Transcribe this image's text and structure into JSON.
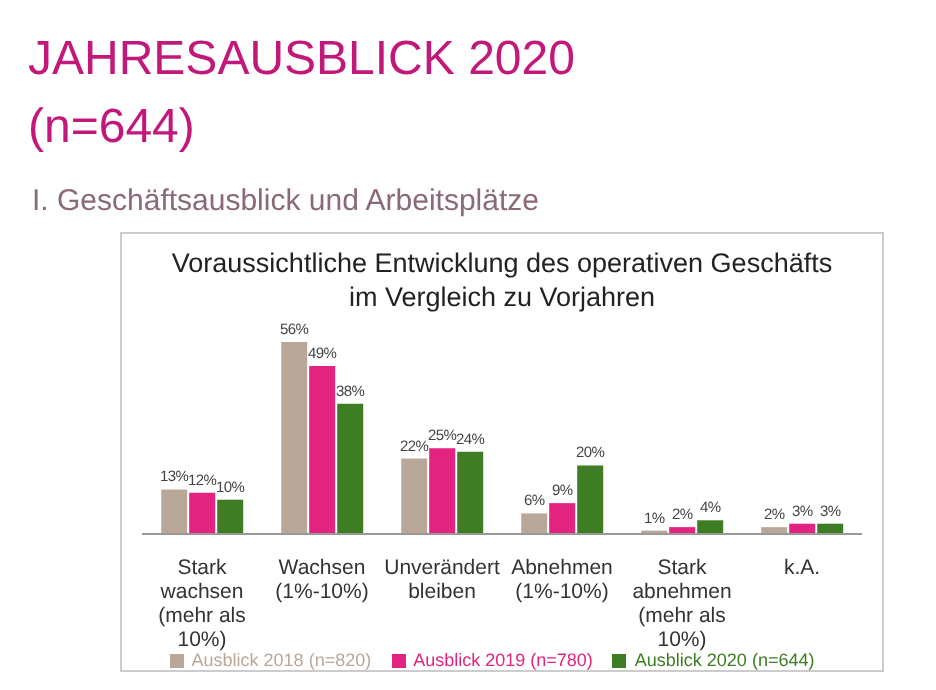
{
  "chart_data": {
    "type": "bar",
    "title": "Voraussichtliche Entwicklung des operativen Geschäfts im Vergleich zu Vorjahren",
    "annotations": [
      "JAHRESAUSBLICK 2020",
      "(n=644)",
      "I. Geschäftsausblick und Arbeitsplätze"
    ],
    "categories": [
      "Stark wachsen (mehr als 10%)",
      "Wachsen (1%-10%)",
      "Unverändert bleiben",
      "Abnehmen (1%-10%)",
      "Stark abnehmen (mehr als 10%)",
      "k.A."
    ],
    "series": [
      {
        "name": "Ausblick 2018 (n=820)",
        "color": "#b9a89a",
        "values": [
          13,
          56,
          22,
          6,
          1,
          2
        ],
        "value_labels": [
          "13%",
          "56%",
          "22%",
          "6%",
          "1%",
          "2%"
        ]
      },
      {
        "name": "Ausblick 2019 (n=780)",
        "color": "#e2237f",
        "values": [
          12,
          49,
          25,
          9,
          2,
          3
        ],
        "value_labels": [
          "12%",
          "49%",
          "25%",
          "9%",
          "2%",
          "3%"
        ]
      },
      {
        "name": "Ausblick 2020 (n=644)",
        "color": "#3e7d23",
        "values": [
          10,
          38,
          24,
          20,
          4,
          3
        ],
        "value_labels": [
          "10%",
          "38%",
          "24%",
          "20%",
          "4%",
          "3%"
        ]
      }
    ],
    "grid": false,
    "legend": "bottom"
  }
}
